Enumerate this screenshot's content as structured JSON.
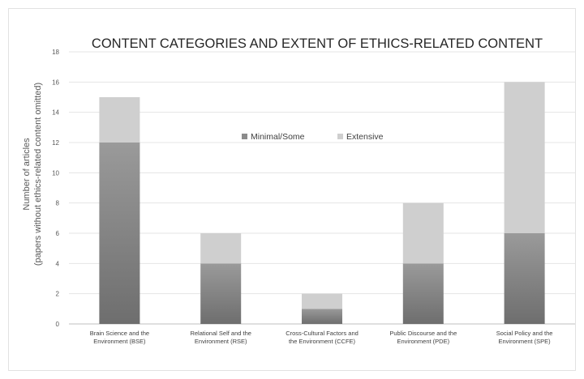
{
  "chart_data": {
    "type": "bar",
    "stacked": true,
    "title": "CONTENT CATEGORIES AND EXTENT OF ETHICS-RELATED CONTENT",
    "ylabel_line1": "Number of articles",
    "ylabel_line2": "(papers without ethics-related content omitted)",
    "xlabel": "",
    "ylim": [
      0,
      18
    ],
    "yticks": [
      0,
      2,
      4,
      6,
      8,
      10,
      12,
      14,
      16,
      18
    ],
    "grid": true,
    "legend_position": "center",
    "categories": [
      [
        "Brain Science and the",
        "Environment (BSE)"
      ],
      [
        "Relational Self and the",
        "Environment (RSE)"
      ],
      [
        "Cross-Cultural Factors and",
        "the Environment (CCFE)"
      ],
      [
        "Public Discourse and the",
        "Environment (PDE)"
      ],
      [
        "Social Policy and the",
        "Environment (SPE)"
      ]
    ],
    "series": [
      {
        "name": "Minimal/Some",
        "color": "#8c8c8c",
        "values": [
          12,
          4,
          1,
          4,
          6
        ]
      },
      {
        "name": "Extensive",
        "color": "#cfcfcf",
        "values": [
          3,
          2,
          1,
          4,
          10
        ]
      }
    ]
  }
}
